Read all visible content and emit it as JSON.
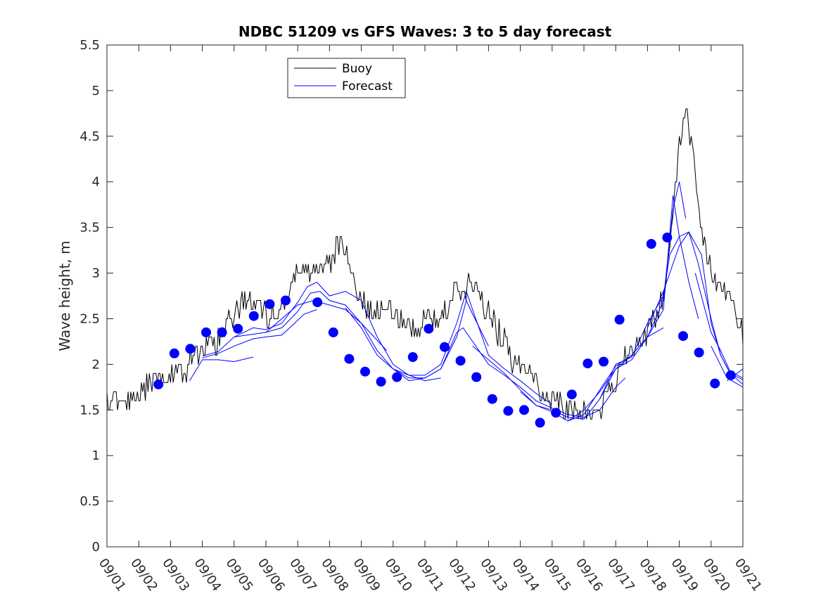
{
  "chart_data": {
    "type": "line",
    "title": "NDBC 51209 vs GFS Waves: 3 to 5 day forecast",
    "xlabel": "",
    "ylabel": "Wave height, m",
    "x_unit": "days since 09/01 00Z",
    "xlim": [
      0,
      20
    ],
    "ylim": [
      0,
      5.5
    ],
    "yticks": [
      0,
      0.5,
      1,
      1.5,
      2,
      2.5,
      3,
      3.5,
      4,
      4.5,
      5,
      5.5
    ],
    "ytick_labels": [
      "0",
      "0.5",
      "1",
      "1.5",
      "2",
      "2.5",
      "3",
      "3.5",
      "4",
      "4.5",
      "5",
      "5.5"
    ],
    "xtick_labels": [
      "09/01",
      "09/02",
      "09/03",
      "09/04",
      "09/05",
      "09/06",
      "09/07",
      "09/08",
      "09/09",
      "09/10",
      "09/11",
      "09/12",
      "09/13",
      "09/14",
      "09/15",
      "09/16",
      "09/17",
      "09/18",
      "09/19",
      "09/20",
      "09/21"
    ],
    "legend": {
      "position": "top-left-inside",
      "entries": [
        {
          "name": "Buoy",
          "color": "#000000"
        },
        {
          "name": "Forecast",
          "color": "#0000ff"
        }
      ]
    },
    "series": [
      {
        "name": "Buoy",
        "color": "#000000",
        "anchors": [
          [
            0.0,
            1.65
          ],
          [
            0.5,
            1.58
          ],
          [
            1.0,
            1.68
          ],
          [
            1.5,
            1.82
          ],
          [
            2.0,
            1.85
          ],
          [
            2.5,
            1.95
          ],
          [
            3.0,
            2.2
          ],
          [
            3.5,
            2.25
          ],
          [
            4.0,
            2.55
          ],
          [
            4.4,
            2.75
          ],
          [
            4.8,
            2.6
          ],
          [
            5.2,
            2.55
          ],
          [
            5.6,
            2.7
          ],
          [
            6.0,
            3.05
          ],
          [
            6.5,
            3.0
          ],
          [
            7.0,
            3.1
          ],
          [
            7.3,
            3.35
          ],
          [
            7.6,
            3.1
          ],
          [
            8.0,
            2.7
          ],
          [
            8.5,
            2.55
          ],
          [
            9.0,
            2.6
          ],
          [
            9.5,
            2.35
          ],
          [
            10.0,
            2.5
          ],
          [
            10.5,
            2.55
          ],
          [
            11.0,
            2.8
          ],
          [
            11.4,
            2.9
          ],
          [
            11.8,
            2.65
          ],
          [
            12.2,
            2.45
          ],
          [
            12.6,
            2.15
          ],
          [
            13.0,
            1.95
          ],
          [
            13.5,
            1.8
          ],
          [
            14.0,
            1.6
          ],
          [
            14.5,
            1.5
          ],
          [
            15.0,
            1.45
          ],
          [
            15.5,
            1.55
          ],
          [
            16.0,
            1.85
          ],
          [
            16.5,
            2.15
          ],
          [
            17.0,
            2.35
          ],
          [
            17.5,
            2.75
          ],
          [
            17.8,
            3.6
          ],
          [
            18.0,
            4.5
          ],
          [
            18.2,
            4.8
          ],
          [
            18.4,
            4.4
          ],
          [
            18.6,
            3.7
          ],
          [
            19.0,
            3.0
          ],
          [
            19.3,
            2.9
          ],
          [
            19.6,
            2.8
          ],
          [
            19.8,
            2.5
          ],
          [
            20.0,
            2.3
          ]
        ],
        "noise_amplitude": 0.14,
        "step_hours": 1
      }
    ],
    "forecast_runs": [
      {
        "name": "Forecast",
        "color": "#0000ff",
        "points": [
          [
            2.6,
            1.82
          ],
          [
            3.0,
            2.05
          ],
          [
            3.5,
            2.05
          ],
          [
            4.0,
            2.03
          ],
          [
            4.6,
            2.08
          ]
        ]
      },
      {
        "name": "Forecast",
        "color": "#0000ff",
        "points": [
          [
            3.0,
            2.07
          ],
          [
            3.5,
            2.12
          ],
          [
            4.0,
            2.2
          ],
          [
            4.6,
            2.28
          ],
          [
            5.0,
            2.3
          ],
          [
            5.5,
            2.32
          ],
          [
            5.9,
            2.45
          ],
          [
            6.2,
            2.55
          ],
          [
            6.6,
            2.6
          ]
        ]
      },
      {
        "name": "Forecast",
        "color": "#0000ff",
        "points": [
          [
            3.0,
            2.09
          ],
          [
            3.5,
            2.14
          ],
          [
            4.0,
            2.3
          ],
          [
            4.6,
            2.33
          ],
          [
            5.0,
            2.35
          ],
          [
            5.5,
            2.4
          ],
          [
            6.0,
            2.58
          ],
          [
            6.4,
            2.78
          ],
          [
            6.7,
            2.8
          ],
          [
            7.0,
            2.7
          ],
          [
            7.5,
            2.65
          ],
          [
            8.0,
            2.45
          ],
          [
            8.4,
            2.3
          ],
          [
            8.8,
            2.15
          ]
        ]
      },
      {
        "name": "Forecast",
        "color": "#0000ff",
        "points": [
          [
            4.0,
            2.3
          ],
          [
            4.6,
            2.4
          ],
          [
            5.0,
            2.38
          ],
          [
            5.5,
            2.45
          ],
          [
            6.0,
            2.68
          ],
          [
            6.3,
            2.85
          ],
          [
            6.6,
            2.9
          ],
          [
            7.0,
            2.75
          ],
          [
            7.5,
            2.8
          ],
          [
            8.0,
            2.7
          ],
          [
            8.5,
            2.3
          ],
          [
            9.0,
            2.0
          ],
          [
            9.5,
            1.88
          ],
          [
            10.0,
            1.82
          ],
          [
            10.5,
            1.85
          ]
        ]
      },
      {
        "name": "Forecast",
        "color": "#0000ff",
        "points": [
          [
            5.0,
            2.35
          ],
          [
            5.5,
            2.5
          ],
          [
            6.0,
            2.65
          ],
          [
            6.5,
            2.7
          ],
          [
            7.0,
            2.65
          ],
          [
            7.5,
            2.6
          ],
          [
            8.0,
            2.45
          ],
          [
            8.5,
            2.15
          ],
          [
            9.0,
            1.95
          ],
          [
            9.5,
            1.85
          ],
          [
            10.0,
            1.85
          ],
          [
            10.5,
            1.95
          ],
          [
            11.0,
            2.3
          ],
          [
            11.3,
            2.7
          ],
          [
            11.5,
            2.55
          ],
          [
            12.0,
            2.2
          ]
        ]
      },
      {
        "name": "Forecast",
        "color": "#0000ff",
        "points": [
          [
            7.5,
            2.62
          ],
          [
            8.0,
            2.4
          ],
          [
            8.5,
            2.1
          ],
          [
            9.0,
            1.95
          ],
          [
            9.5,
            1.88
          ],
          [
            10.0,
            1.88
          ],
          [
            10.5,
            2.0
          ],
          [
            11.0,
            2.45
          ],
          [
            11.3,
            2.8
          ],
          [
            11.6,
            2.5
          ],
          [
            12.0,
            2.1
          ],
          [
            12.5,
            1.95
          ],
          [
            13.0,
            1.82
          ],
          [
            13.5,
            1.68
          ],
          [
            14.0,
            1.56
          ]
        ]
      },
      {
        "name": "Forecast",
        "color": "#0000ff",
        "points": [
          [
            9.0,
            1.95
          ],
          [
            9.5,
            1.82
          ],
          [
            10.0,
            1.85
          ],
          [
            10.5,
            1.95
          ],
          [
            11.0,
            2.35
          ],
          [
            11.2,
            2.4
          ],
          [
            11.5,
            2.25
          ],
          [
            12.0,
            2.0
          ],
          [
            12.5,
            1.88
          ],
          [
            13.0,
            1.75
          ],
          [
            13.5,
            1.6
          ],
          [
            14.0,
            1.52
          ],
          [
            14.5,
            1.45
          ],
          [
            15.0,
            1.42
          ],
          [
            15.5,
            1.5
          ],
          [
            16.0,
            1.75
          ],
          [
            16.3,
            1.85
          ]
        ]
      },
      {
        "name": "Forecast",
        "color": "#0000ff",
        "points": [
          [
            11.5,
            2.2
          ],
          [
            12.0,
            2.05
          ],
          [
            12.5,
            1.9
          ],
          [
            13.0,
            1.72
          ],
          [
            13.5,
            1.55
          ],
          [
            14.0,
            1.5
          ],
          [
            14.5,
            1.42
          ],
          [
            15.0,
            1.4
          ],
          [
            15.5,
            1.62
          ],
          [
            16.0,
            1.95
          ],
          [
            16.5,
            2.1
          ],
          [
            17.0,
            2.3
          ],
          [
            17.5,
            2.4
          ]
        ]
      },
      {
        "name": "Forecast",
        "color": "#0000ff",
        "points": [
          [
            13.0,
            1.7
          ],
          [
            13.5,
            1.55
          ],
          [
            14.0,
            1.48
          ],
          [
            14.5,
            1.38
          ],
          [
            15.0,
            1.45
          ],
          [
            15.5,
            1.72
          ],
          [
            16.0,
            1.98
          ],
          [
            16.5,
            2.1
          ],
          [
            17.0,
            2.3
          ],
          [
            17.5,
            2.7
          ],
          [
            17.8,
            3.7
          ],
          [
            18.0,
            4.0
          ],
          [
            18.2,
            3.6
          ]
        ]
      },
      {
        "name": "Forecast",
        "color": "#0000ff",
        "points": [
          [
            14.5,
            1.38
          ],
          [
            15.0,
            1.5
          ],
          [
            15.5,
            1.7
          ],
          [
            16.0,
            1.95
          ],
          [
            16.5,
            2.05
          ],
          [
            17.0,
            2.3
          ],
          [
            17.5,
            2.6
          ],
          [
            17.8,
            3.85
          ],
          [
            18.0,
            3.4
          ],
          [
            18.3,
            2.9
          ],
          [
            18.6,
            2.5
          ]
        ]
      },
      {
        "name": "Forecast",
        "color": "#0000ff",
        "points": [
          [
            15.5,
            1.62
          ],
          [
            16.0,
            2.0
          ],
          [
            16.5,
            2.08
          ],
          [
            17.0,
            2.45
          ],
          [
            17.5,
            2.75
          ],
          [
            17.7,
            3.2
          ],
          [
            18.0,
            3.4
          ],
          [
            18.3,
            3.45
          ],
          [
            18.6,
            3.1
          ],
          [
            19.0,
            2.5
          ],
          [
            19.3,
            2.1
          ],
          [
            19.6,
            1.9
          ],
          [
            20.0,
            1.83
          ]
        ]
      },
      {
        "name": "Forecast",
        "color": "#0000ff",
        "points": [
          [
            17.0,
            2.4
          ],
          [
            17.5,
            2.8
          ],
          [
            18.0,
            3.3
          ],
          [
            18.3,
            3.45
          ],
          [
            18.7,
            3.2
          ],
          [
            19.0,
            2.45
          ],
          [
            19.3,
            2.1
          ],
          [
            19.6,
            1.9
          ],
          [
            20.0,
            1.78
          ]
        ]
      },
      {
        "name": "Forecast",
        "color": "#0000ff",
        "points": [
          [
            18.5,
            3.0
          ],
          [
            19.0,
            2.35
          ],
          [
            19.3,
            2.15
          ],
          [
            19.6,
            1.92
          ],
          [
            20.0,
            1.85
          ]
        ]
      },
      {
        "name": "Forecast",
        "color": "#0000ff",
        "points": [
          [
            19.0,
            2.2
          ],
          [
            19.5,
            1.85
          ],
          [
            20.0,
            1.75
          ]
        ]
      },
      {
        "name": "Forecast",
        "color": "#0000ff",
        "points": [
          [
            19.5,
            1.82
          ],
          [
            20.0,
            1.95
          ]
        ]
      }
    ],
    "markers": {
      "name": "Forecast verification points",
      "color": "#0000ff",
      "points": [
        [
          1.62,
          1.78
        ],
        [
          2.12,
          2.12
        ],
        [
          2.62,
          2.17
        ],
        [
          3.12,
          2.35
        ],
        [
          3.62,
          2.35
        ],
        [
          4.12,
          2.39
        ],
        [
          4.62,
          2.53
        ],
        [
          5.12,
          2.66
        ],
        [
          5.62,
          2.7
        ],
        [
          6.62,
          2.68
        ],
        [
          7.12,
          2.35
        ],
        [
          7.62,
          2.06
        ],
        [
          8.12,
          1.92
        ],
        [
          8.62,
          1.81
        ],
        [
          9.12,
          1.86
        ],
        [
          9.62,
          2.08
        ],
        [
          10.12,
          2.39
        ],
        [
          10.62,
          2.19
        ],
        [
          11.12,
          2.04
        ],
        [
          11.62,
          1.86
        ],
        [
          12.12,
          1.62
        ],
        [
          12.62,
          1.49
        ],
        [
          13.12,
          1.5
        ],
        [
          13.62,
          1.36
        ],
        [
          14.12,
          1.47
        ],
        [
          14.62,
          1.67
        ],
        [
          15.12,
          2.01
        ],
        [
          15.62,
          2.03
        ],
        [
          16.12,
          2.49
        ],
        [
          17.12,
          3.32
        ],
        [
          17.62,
          3.39
        ],
        [
          18.12,
          2.31
        ],
        [
          18.62,
          2.13
        ],
        [
          19.12,
          1.79
        ],
        [
          19.62,
          1.88
        ]
      ]
    }
  }
}
